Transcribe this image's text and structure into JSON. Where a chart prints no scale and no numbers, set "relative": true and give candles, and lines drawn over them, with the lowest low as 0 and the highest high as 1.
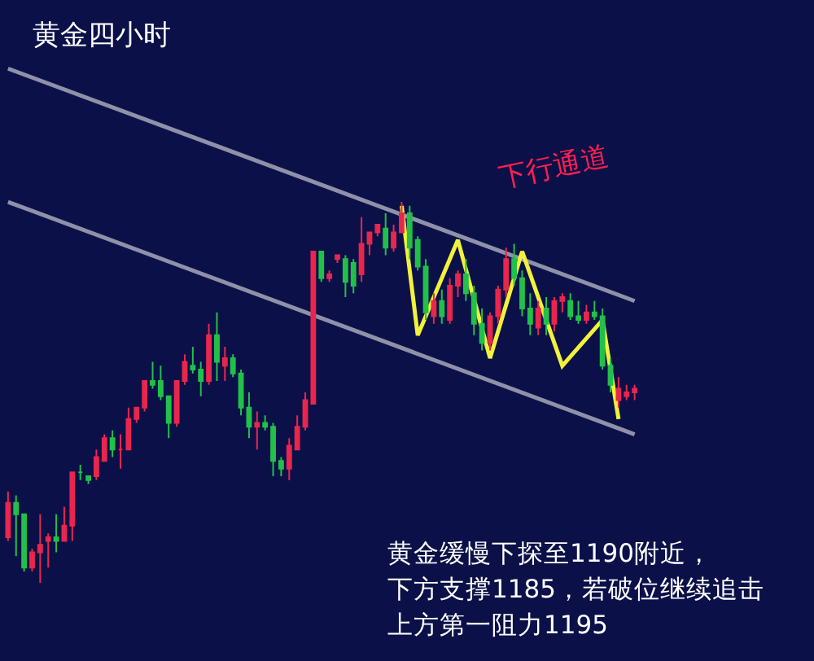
{
  "chart_data": {
    "type": "candlestick",
    "relative": true,
    "title": "黄金四小时",
    "annotations": [
      "下行通道",
      "黄金缓慢下探至1190附近，",
      "下方支撑1185，若破位继续追击",
      "上方第一阻力1195"
    ],
    "categories": [
      null,
      null,
      null,
      null,
      null,
      null,
      null,
      null,
      null,
      null,
      null,
      null,
      null,
      null,
      null,
      null,
      null,
      null,
      null,
      null,
      null,
      null,
      null,
      null,
      null,
      null,
      null,
      null,
      null,
      null,
      null,
      null,
      null,
      null,
      null,
      null,
      null,
      null,
      null,
      null,
      null,
      null,
      null,
      null,
      null,
      null,
      null,
      null,
      null,
      null,
      null,
      null,
      null,
      null,
      null,
      null,
      null,
      null,
      null,
      null,
      null,
      null,
      null,
      null,
      null,
      null,
      null,
      null,
      null,
      null,
      null,
      null,
      null,
      null,
      null,
      null,
      null,
      null,
      null
    ],
    "ohlc": [
      [
        0.12,
        0.24,
        0.11,
        0.21
      ],
      [
        0.21,
        0.23,
        0.07,
        0.18
      ],
      [
        0.18,
        0.18,
        0.03,
        0.04
      ],
      [
        0.04,
        0.09,
        0.03,
        0.08
      ],
      [
        0.08,
        0.18,
        0.0,
        0.1
      ],
      [
        0.11,
        0.13,
        0.04,
        0.12
      ],
      [
        0.12,
        0.18,
        0.08,
        0.11
      ],
      [
        0.11,
        0.2,
        0.11,
        0.15
      ],
      [
        0.15,
        0.29,
        0.11,
        0.29
      ],
      [
        0.29,
        0.31,
        0.27,
        0.29
      ],
      [
        0.28,
        0.28,
        0.26,
        0.27
      ],
      [
        0.28,
        0.35,
        0.27,
        0.33
      ],
      [
        0.32,
        0.39,
        0.32,
        0.38
      ],
      [
        0.38,
        0.4,
        0.33,
        0.35
      ],
      [
        0.35,
        0.39,
        0.3,
        0.35
      ],
      [
        0.35,
        0.46,
        0.35,
        0.43
      ],
      [
        0.43,
        0.46,
        0.42,
        0.46
      ],
      [
        0.46,
        0.53,
        0.45,
        0.53
      ],
      [
        0.53,
        0.58,
        0.51,
        0.52
      ],
      [
        0.53,
        0.57,
        0.48,
        0.49
      ],
      [
        0.49,
        0.49,
        0.38,
        0.42
      ],
      [
        0.42,
        0.53,
        0.41,
        0.53
      ],
      [
        0.53,
        0.6,
        0.52,
        0.58
      ],
      [
        0.57,
        0.62,
        0.55,
        0.56
      ],
      [
        0.56,
        0.58,
        0.49,
        0.53
      ],
      [
        0.53,
        0.68,
        0.52,
        0.65
      ],
      [
        0.65,
        0.71,
        0.53,
        0.58
      ],
      [
        0.57,
        0.62,
        0.53,
        0.59
      ],
      [
        0.59,
        0.6,
        0.54,
        0.55
      ],
      [
        0.55,
        0.56,
        0.44,
        0.46
      ],
      [
        0.46,
        0.5,
        0.38,
        0.41
      ],
      [
        0.41,
        0.45,
        0.35,
        0.42
      ],
      [
        0.42,
        0.44,
        0.4,
        0.41
      ],
      [
        0.41,
        0.42,
        0.28,
        0.32
      ],
      [
        0.32,
        0.33,
        0.28,
        0.3
      ],
      [
        0.3,
        0.38,
        0.27,
        0.36
      ],
      [
        0.35,
        0.44,
        0.35,
        0.41
      ],
      [
        0.41,
        0.5,
        0.4,
        0.48
      ],
      [
        0.47,
        0.87,
        0.47,
        0.87
      ],
      [
        0.87,
        0.87,
        0.79,
        0.8
      ],
      [
        0.8,
        0.82,
        0.79,
        0.81
      ],
      [
        0.85,
        0.86,
        0.84,
        0.86
      ],
      [
        0.85,
        0.86,
        0.75,
        0.79
      ],
      [
        0.84,
        0.85,
        0.76,
        0.78
      ],
      [
        0.81,
        0.96,
        0.79,
        0.89
      ],
      [
        0.89,
        0.92,
        0.86,
        0.92
      ],
      [
        0.92,
        0.94,
        0.91,
        0.94
      ],
      [
        0.93,
        0.97,
        0.86,
        0.88
      ],
      [
        0.88,
        0.94,
        0.87,
        0.92
      ],
      [
        0.92,
        1.0,
        0.92,
        0.97
      ],
      [
        0.97,
        0.99,
        0.85,
        0.88
      ],
      [
        0.9,
        0.91,
        0.82,
        0.83
      ],
      [
        0.83,
        0.85,
        0.69,
        0.71
      ],
      [
        0.7,
        0.76,
        0.68,
        0.74
      ],
      [
        0.74,
        0.77,
        0.68,
        0.7
      ],
      [
        0.69,
        0.8,
        0.68,
        0.78
      ],
      [
        0.78,
        0.82,
        0.75,
        0.81
      ],
      [
        0.81,
        0.85,
        0.74,
        0.76
      ],
      [
        0.76,
        0.78,
        0.65,
        0.68
      ],
      [
        0.68,
        0.72,
        0.61,
        0.63
      ],
      [
        0.63,
        0.71,
        0.61,
        0.7
      ],
      [
        0.7,
        0.78,
        0.68,
        0.77
      ],
      [
        0.77,
        0.88,
        0.75,
        0.85
      ],
      [
        0.85,
        0.89,
        0.78,
        0.8
      ],
      [
        0.8,
        0.82,
        0.7,
        0.72
      ],
      [
        0.72,
        0.76,
        0.65,
        0.68
      ],
      [
        0.67,
        0.74,
        0.65,
        0.72
      ],
      [
        0.72,
        0.75,
        0.65,
        0.68
      ],
      [
        0.68,
        0.75,
        0.66,
        0.74
      ],
      [
        0.74,
        0.76,
        0.71,
        0.75
      ],
      [
        0.74,
        0.76,
        0.69,
        0.7
      ],
      [
        0.7,
        0.74,
        0.68,
        0.69
      ],
      [
        0.69,
        0.73,
        0.68,
        0.71
      ],
      [
        0.71,
        0.74,
        0.69,
        0.7
      ],
      [
        0.7,
        0.72,
        0.56,
        0.57
      ],
      [
        0.57,
        0.59,
        0.5,
        0.52
      ],
      [
        0.48,
        0.54,
        0.46,
        0.51
      ],
      [
        0.49,
        0.52,
        0.48,
        0.5
      ],
      [
        0.5,
        0.52,
        0.48,
        0.51
      ]
    ],
    "colors": [
      "#e8264e",
      "#22c04a",
      "#22c04a",
      "#e8264e",
      "#e8264e",
      "#e8264e",
      "#22c04a",
      "#e8264e",
      "#e8264e",
      "#22c04a",
      "#22c04a",
      "#e8264e",
      "#e8264e",
      "#22c04a",
      "#e8264e",
      "#e8264e",
      "#e8264e",
      "#e8264e",
      "#22c04a",
      "#22c04a",
      "#22c04a",
      "#e8264e",
      "#e8264e",
      "#22c04a",
      "#22c04a",
      "#e8264e",
      "#22c04a",
      "#e8264e",
      "#22c04a",
      "#22c04a",
      "#22c04a",
      "#e8264e",
      "#22c04a",
      "#22c04a",
      "#22c04a",
      "#e8264e",
      "#e8264e",
      "#e8264e",
      "#e8264e",
      "#22c04a",
      "#e8264e",
      "#e8264e",
      "#22c04a",
      "#22c04a",
      "#e8264e",
      "#e8264e",
      "#e8264e",
      "#22c04a",
      "#e8264e",
      "#e8264e",
      "#22c04a",
      "#22c04a",
      "#22c04a",
      "#e8264e",
      "#22c04a",
      "#e8264e",
      "#e8264e",
      "#22c04a",
      "#22c04a",
      "#22c04a",
      "#e8264e",
      "#e8264e",
      "#e8264e",
      "#22c04a",
      "#22c04a",
      "#22c04a",
      "#e8264e",
      "#22c04a",
      "#e8264e",
      "#e8264e",
      "#22c04a",
      "#22c04a",
      "#e8264e",
      "#22c04a",
      "#22c04a",
      "#22c04a",
      "#e8264e",
      "#e8264e",
      "#e8264e"
    ],
    "series": [
      {
        "type": "line",
        "color": "#8e91a8",
        "values": [
          1.35,
          null,
          null,
          null,
          null,
          null,
          null,
          null,
          null,
          null,
          null,
          null,
          null,
          null,
          null,
          null,
          null,
          null,
          null,
          null,
          null,
          null,
          null,
          null,
          null,
          null,
          null,
          null,
          null,
          null,
          null,
          null,
          null,
          null,
          null,
          null,
          null,
          null,
          null,
          null,
          null,
          null,
          null,
          null,
          null,
          null,
          null,
          null,
          null,
          null,
          null,
          null,
          null,
          null,
          null,
          null,
          null,
          null,
          null,
          null,
          null,
          null,
          null,
          null,
          null,
          null,
          null,
          null,
          null,
          null,
          null,
          null,
          null,
          null,
          null,
          null,
          null,
          null,
          0.74
        ]
      },
      {
        "type": "line",
        "color": "#8e91a8",
        "values": [
          1.0,
          null,
          null,
          null,
          null,
          null,
          null,
          null,
          null,
          null,
          null,
          null,
          null,
          null,
          null,
          null,
          null,
          null,
          null,
          null,
          null,
          null,
          null,
          null,
          null,
          null,
          null,
          null,
          null,
          null,
          null,
          null,
          null,
          null,
          null,
          null,
          null,
          null,
          null,
          null,
          null,
          null,
          null,
          null,
          null,
          null,
          null,
          null,
          null,
          null,
          null,
          null,
          null,
          null,
          null,
          null,
          null,
          null,
          null,
          null,
          null,
          null,
          null,
          null,
          null,
          null,
          null,
          null,
          null,
          null,
          null,
          null,
          null,
          null,
          null,
          null,
          null,
          null,
          0.39
        ]
      },
      {
        "type": "line",
        "color": "#f2f23a",
        "values": [
          null,
          null,
          null,
          null,
          null,
          null,
          null,
          null,
          null,
          null,
          null,
          null,
          null,
          null,
          null,
          null,
          null,
          null,
          null,
          null,
          null,
          null,
          null,
          null,
          null,
          null,
          null,
          null,
          null,
          null,
          null,
          null,
          null,
          null,
          null,
          null,
          null,
          null,
          null,
          null,
          null,
          null,
          null,
          null,
          null,
          null,
          null,
          null,
          null,
          0.99,
          null,
          0.65,
          null,
          null,
          null,
          null,
          0.9,
          null,
          null,
          null,
          0.59,
          null,
          null,
          null,
          0.87,
          null,
          null,
          null,
          null,
          0.57,
          null,
          null,
          null,
          null,
          0.69,
          null,
          0.43,
          null,
          null
        ]
      }
    ]
  }
}
